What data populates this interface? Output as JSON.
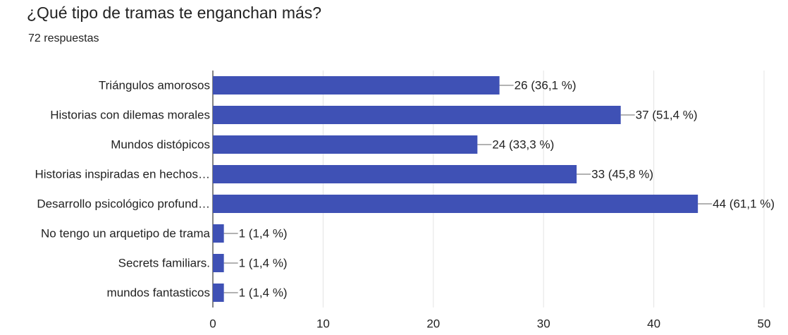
{
  "chart_data": {
    "type": "bar",
    "orientation": "horizontal",
    "title": "¿Qué tipo de tramas te enganchan más?",
    "subtitle": "72 respuestas",
    "categories": [
      "Triángulos amorosos",
      "Historias con dilemas morales",
      "Mundos distópicos",
      "Historias inspiradas en hechos…",
      "Desarrollo psicológico profund…",
      "No tengo un arquetipo de trama",
      "Secrets familiars.",
      "mundos fantasticos"
    ],
    "values": [
      26,
      37,
      24,
      33,
      44,
      1,
      1,
      1
    ],
    "value_labels": [
      "26 (36,1 %)",
      "37 (51,4 %)",
      "24 (33,3 %)",
      "33 (45,8 %)",
      "44 (61,1 %)",
      "1 (1,4 %)",
      "1 (1,4 %)",
      "1 (1,4 %)"
    ],
    "color": "#3f51b5",
    "xlim": [
      0,
      50
    ],
    "xticks": [
      0,
      10,
      20,
      30,
      40,
      50
    ],
    "grid": true
  }
}
